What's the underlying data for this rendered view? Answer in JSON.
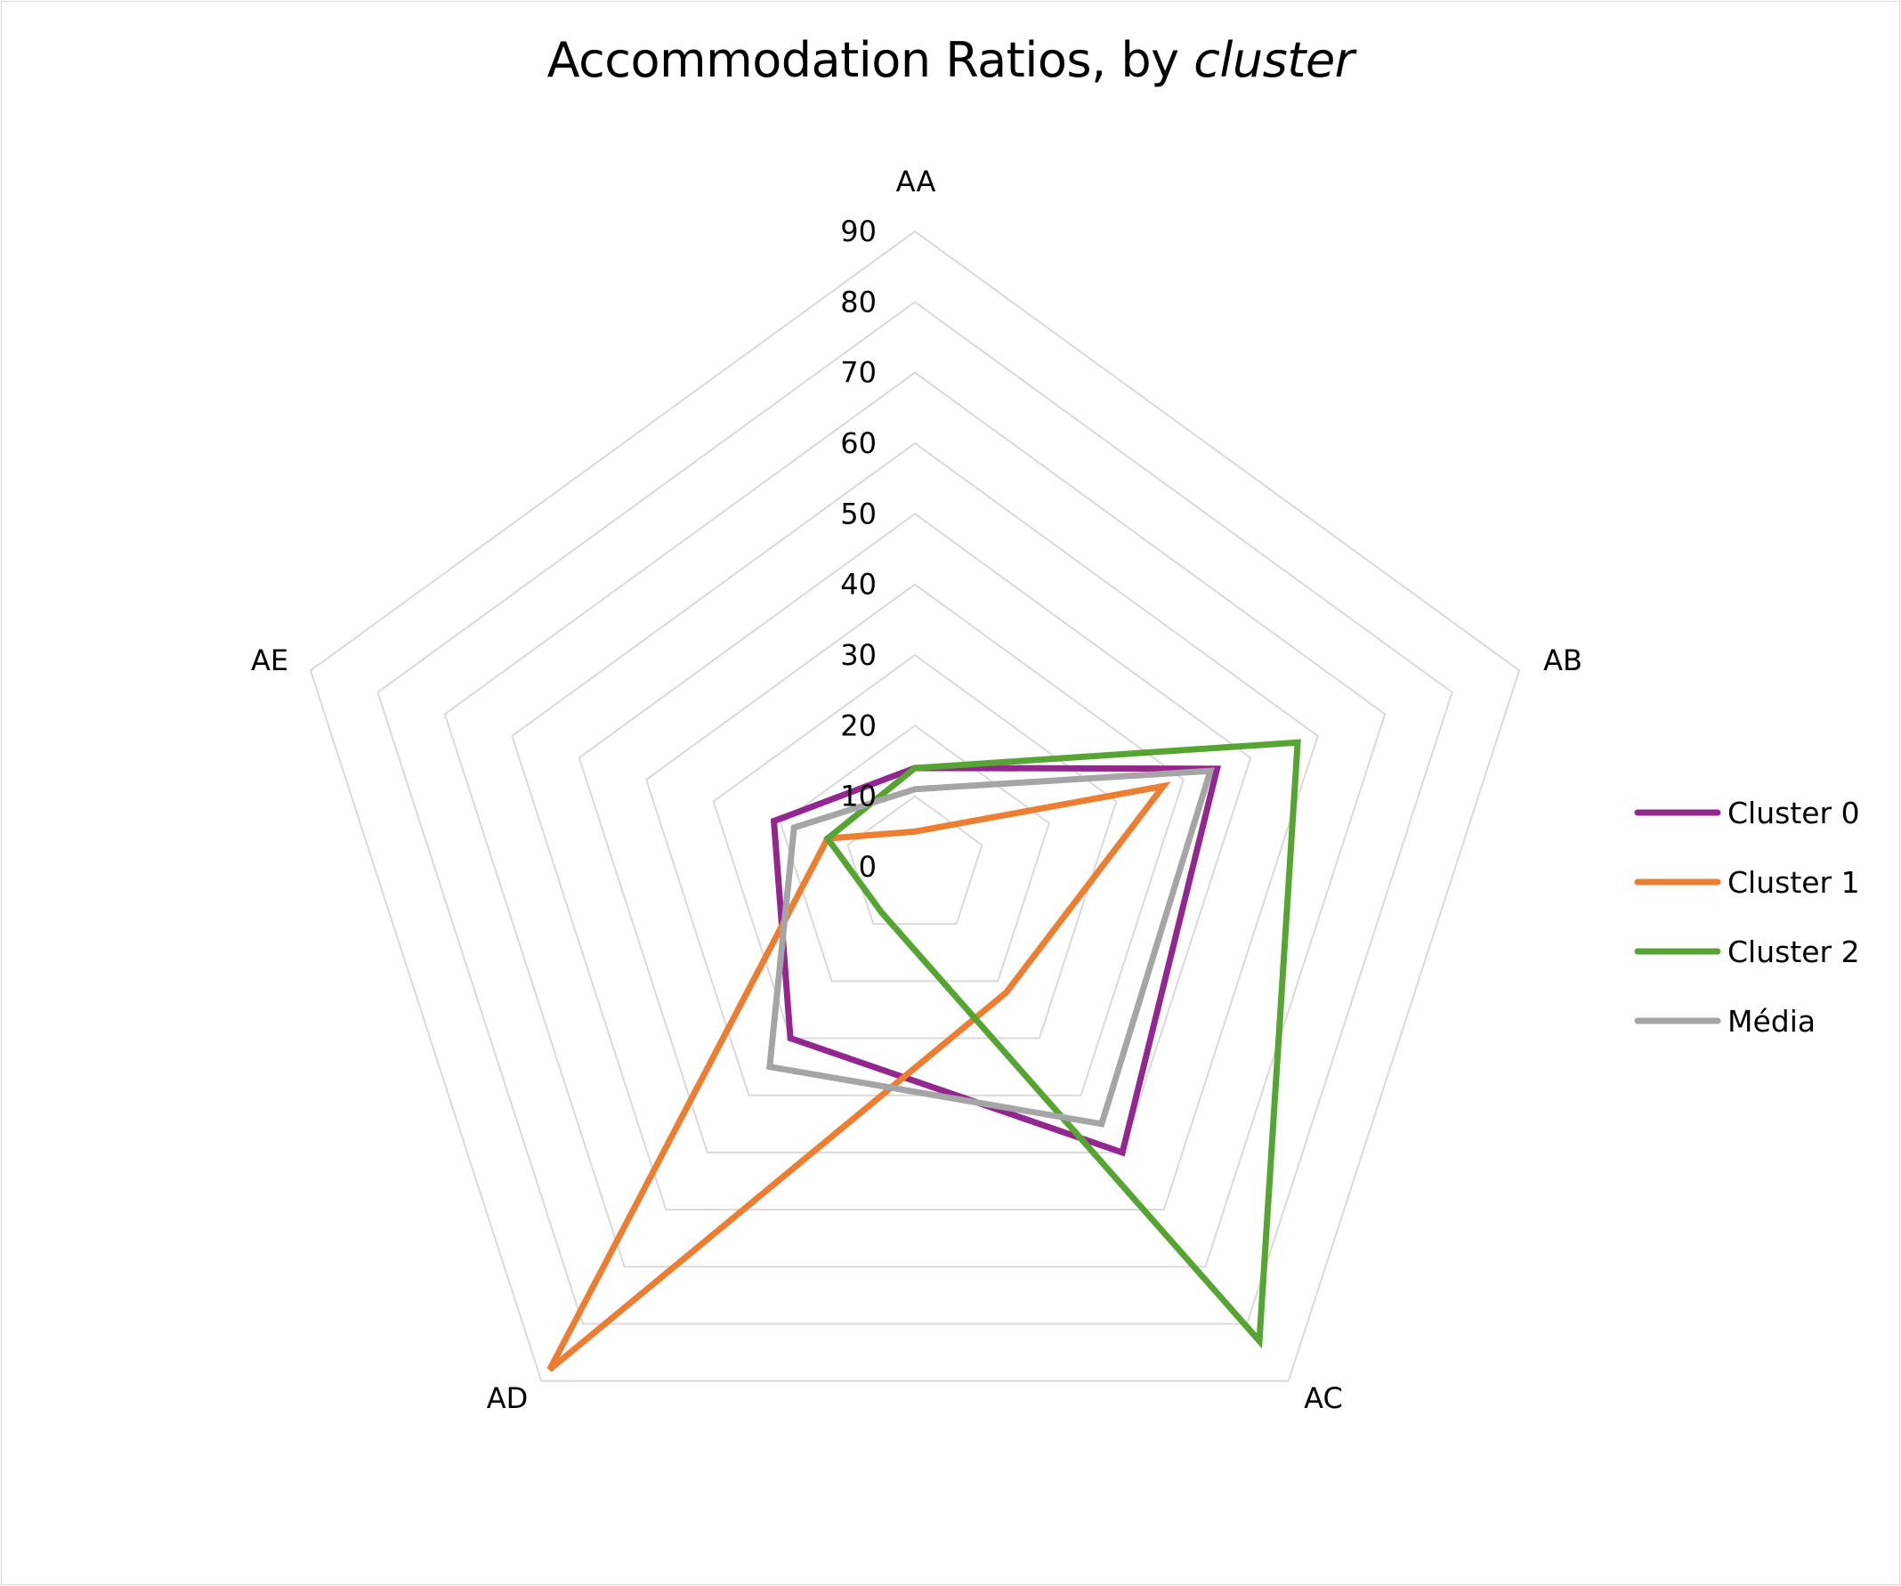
{
  "chart_data": {
    "type": "radar",
    "title_main": "Accommodation Ratios, by ",
    "title_italic": "cluster",
    "categories": [
      "AA",
      "AB",
      "AC",
      "AD",
      "AE"
    ],
    "r_ticks": [
      0,
      10,
      20,
      30,
      40,
      50,
      60,
      70,
      80,
      90
    ],
    "rlim": [
      0,
      90
    ],
    "grid": true,
    "legend_position": "right",
    "series": [
      {
        "name": "Cluster 0",
        "color": "#93278f",
        "values": [
          14,
          45,
          50,
          30,
          21
        ]
      },
      {
        "name": "Cluster 1",
        "color": "#ed7d31",
        "values": [
          5,
          37,
          22,
          88,
          13
        ]
      },
      {
        "name": "Cluster 2",
        "color": "#56a532",
        "values": [
          14,
          57,
          83,
          8,
          13
        ]
      },
      {
        "name": "Média",
        "color": "#a5a5a5",
        "values": [
          11,
          44,
          45,
          35,
          18
        ]
      }
    ]
  }
}
